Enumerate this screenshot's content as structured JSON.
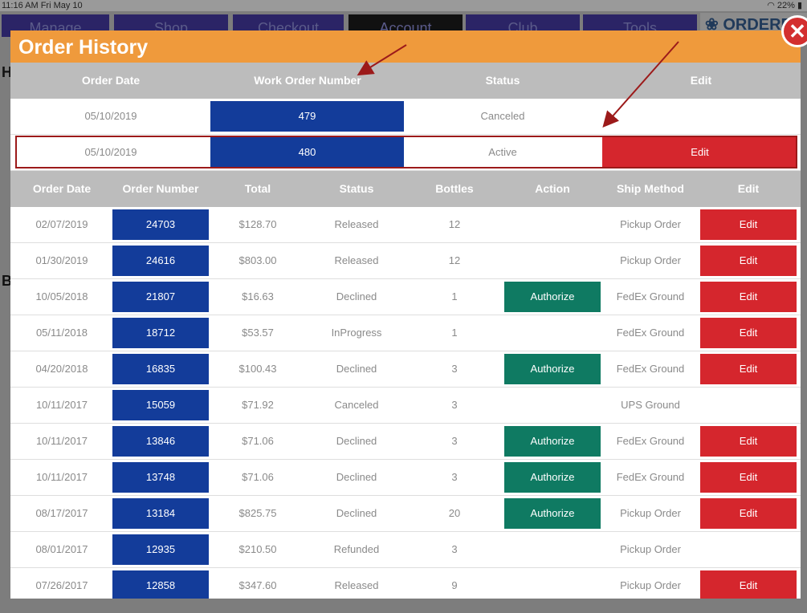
{
  "status_bar": {
    "time": "11:16 AM  Fri May 10",
    "battery": "22%"
  },
  "background": {
    "nav_tabs": [
      "Manage",
      "Shop",
      "Checkout",
      "Account",
      "Club",
      "Tools"
    ],
    "logo_text": "ORDERP",
    "letters": [
      "H",
      "B"
    ]
  },
  "modal": {
    "title": "Order History",
    "close_label": "✕"
  },
  "work_orders": {
    "headers": [
      "Order Date",
      "Work Order Number",
      "Status",
      "Edit"
    ],
    "rows": [
      {
        "date": "05/10/2019",
        "number": "479",
        "status": "Canceled",
        "edit": ""
      },
      {
        "date": "05/10/2019",
        "number": "480",
        "status": "Active",
        "edit": "Edit"
      }
    ]
  },
  "orders": {
    "headers": [
      "Order Date",
      "Order Number",
      "Total",
      "Status",
      "Bottles",
      "Action",
      "Ship Method",
      "Edit"
    ],
    "rows": [
      {
        "date": "02/07/2019",
        "number": "24703",
        "total": "$128.70",
        "status": "Released",
        "bottles": "12",
        "action": "",
        "ship": "Pickup Order",
        "edit": "Edit"
      },
      {
        "date": "01/30/2019",
        "number": "24616",
        "total": "$803.00",
        "status": "Released",
        "bottles": "12",
        "action": "",
        "ship": "Pickup Order",
        "edit": "Edit"
      },
      {
        "date": "10/05/2018",
        "number": "21807",
        "total": "$16.63",
        "status": "Declined",
        "bottles": "1",
        "action": "Authorize",
        "ship": "FedEx Ground",
        "edit": "Edit"
      },
      {
        "date": "05/11/2018",
        "number": "18712",
        "total": "$53.57",
        "status": "InProgress",
        "bottles": "1",
        "action": "",
        "ship": "FedEx Ground",
        "edit": "Edit"
      },
      {
        "date": "04/20/2018",
        "number": "16835",
        "total": "$100.43",
        "status": "Declined",
        "bottles": "3",
        "action": "Authorize",
        "ship": "FedEx Ground",
        "edit": "Edit"
      },
      {
        "date": "10/11/2017",
        "number": "15059",
        "total": "$71.92",
        "status": "Canceled",
        "bottles": "3",
        "action": "",
        "ship": "UPS Ground",
        "edit": ""
      },
      {
        "date": "10/11/2017",
        "number": "13846",
        "total": "$71.06",
        "status": "Declined",
        "bottles": "3",
        "action": "Authorize",
        "ship": "FedEx Ground",
        "edit": "Edit"
      },
      {
        "date": "10/11/2017",
        "number": "13748",
        "total": "$71.06",
        "status": "Declined",
        "bottles": "3",
        "action": "Authorize",
        "ship": "FedEx Ground",
        "edit": "Edit"
      },
      {
        "date": "08/17/2017",
        "number": "13184",
        "total": "$825.75",
        "status": "Declined",
        "bottles": "20",
        "action": "Authorize",
        "ship": "Pickup Order",
        "edit": "Edit"
      },
      {
        "date": "08/01/2017",
        "number": "12935",
        "total": "$210.50",
        "status": "Refunded",
        "bottles": "3",
        "action": "",
        "ship": "Pickup Order",
        "edit": ""
      },
      {
        "date": "07/26/2017",
        "number": "12858",
        "total": "$347.60",
        "status": "Released",
        "bottles": "9",
        "action": "",
        "ship": "Pickup Order",
        "edit": "Edit"
      }
    ]
  },
  "colors": {
    "header_orange": "#ef9a3c",
    "table_header_gray": "#bcbcbc",
    "order_number_blue": "#133c9a",
    "edit_red": "#d5262d",
    "authorize_green": "#0f7a62",
    "annotation_red": "#9c1a1a"
  },
  "icons": [
    "close-icon",
    "wifi-icon",
    "battery-icon",
    "annotation-arrow"
  ]
}
